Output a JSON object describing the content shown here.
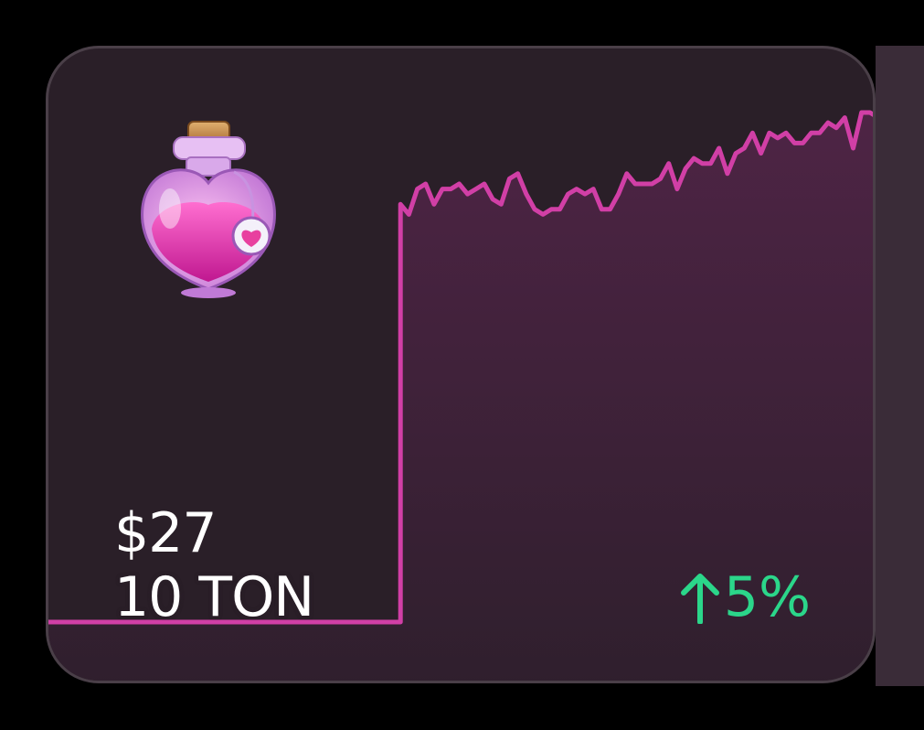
{
  "card": {
    "price_usd": "$27",
    "price_ton": "10 TON",
    "change_text": "5%",
    "change_direction": "up",
    "icon": "love-potion-icon"
  },
  "colors": {
    "background": "#000000",
    "card_bg": "#2a1f28",
    "card_border": "#4a3f48",
    "line": "#d13fa6",
    "area_fill": "#4a2240",
    "positive": "#2bd68a",
    "text": "#ffffff"
  },
  "chart_data": {
    "type": "area",
    "values": [
      0,
      0,
      0,
      0,
      0,
      0,
      0,
      0,
      0,
      0,
      0,
      0,
      0,
      0,
      0,
      0,
      0,
      0,
      0,
      0,
      0,
      0,
      0,
      0,
      0,
      0,
      0,
      0,
      0,
      0,
      0,
      0,
      0,
      0,
      0,
      0,
      0,
      0,
      0,
      0,
      0,
      0,
      0.82,
      0.8,
      0.85,
      0.86,
      0.82,
      0.85,
      0.85,
      0.86,
      0.84,
      0.85,
      0.86,
      0.83,
      0.82,
      0.87,
      0.88,
      0.84,
      0.81,
      0.8,
      0.81,
      0.81,
      0.84,
      0.85,
      0.84,
      0.85,
      0.81,
      0.81,
      0.84,
      0.88,
      0.86,
      0.86,
      0.86,
      0.87,
      0.9,
      0.85,
      0.89,
      0.91,
      0.9,
      0.9,
      0.93,
      0.88,
      0.92,
      0.93,
      0.96,
      0.92,
      0.96,
      0.95,
      0.96,
      0.94,
      0.94,
      0.96,
      0.96,
      0.98,
      0.97,
      0.99,
      0.93,
      1.0,
      1.0,
      0.99
    ]
  }
}
